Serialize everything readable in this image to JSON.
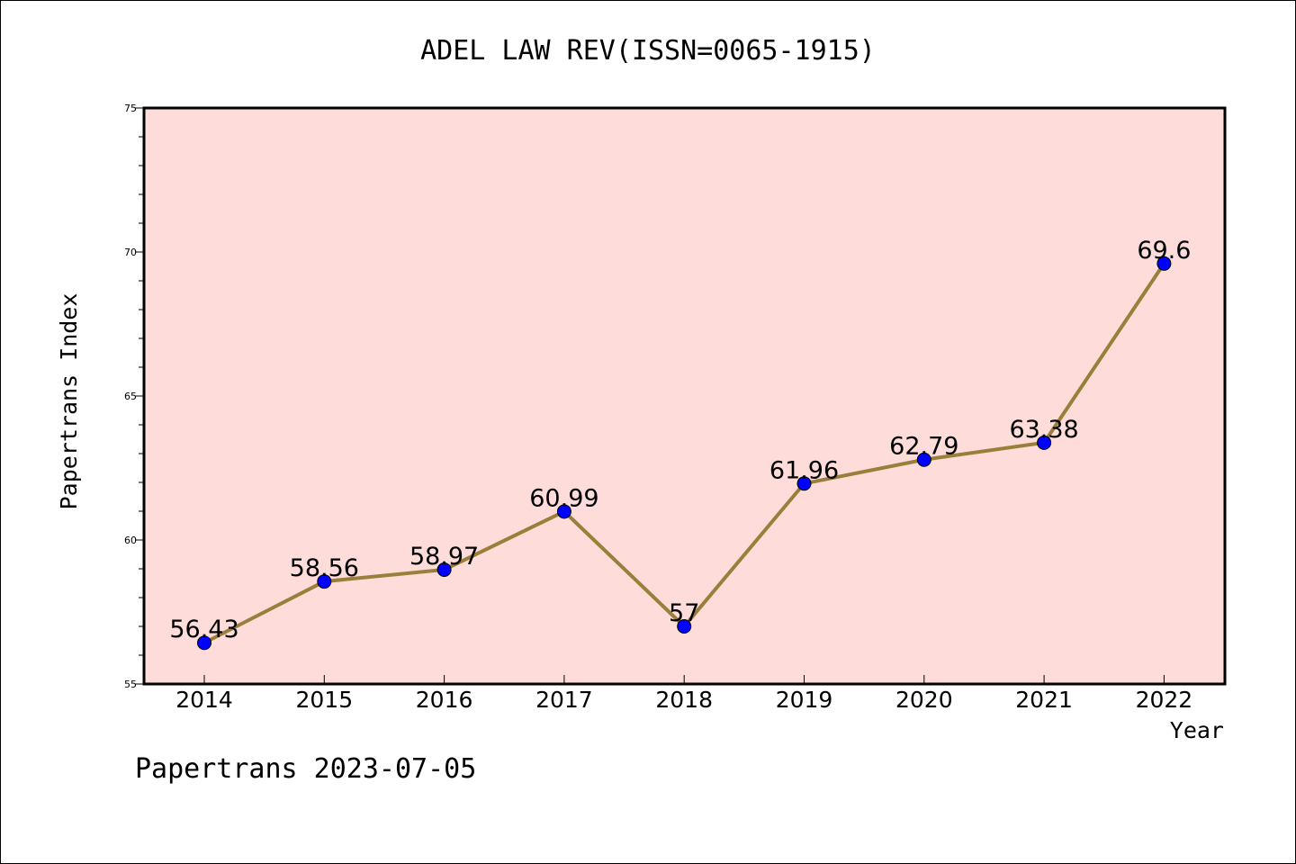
{
  "chart_data": {
    "type": "line",
    "title": "ADEL LAW REV(ISSN=0065-1915)",
    "xlabel": "Year",
    "ylabel": "Papertrans Index",
    "categories": [
      "2014",
      "2015",
      "2016",
      "2017",
      "2018",
      "2019",
      "2020",
      "2021",
      "2022"
    ],
    "series": [
      {
        "values": [
          56.43,
          58.56,
          58.97,
          60.99,
          57,
          61.96,
          62.79,
          63.38,
          69.6
        ],
        "point_labels": [
          "56.43",
          "58.56",
          "58.97",
          "60.99",
          "57",
          "61.96",
          "62.79",
          "63.38",
          "69.6"
        ],
        "line_color": "#9a7f3a",
        "marker_color": "#0000ff"
      }
    ],
    "ylim": [
      55,
      75
    ],
    "yticks": [
      55,
      60,
      65,
      70,
      75
    ],
    "plot_background": "#fddcda",
    "grid": false,
    "footer": "Papertrans 2023-07-05"
  }
}
